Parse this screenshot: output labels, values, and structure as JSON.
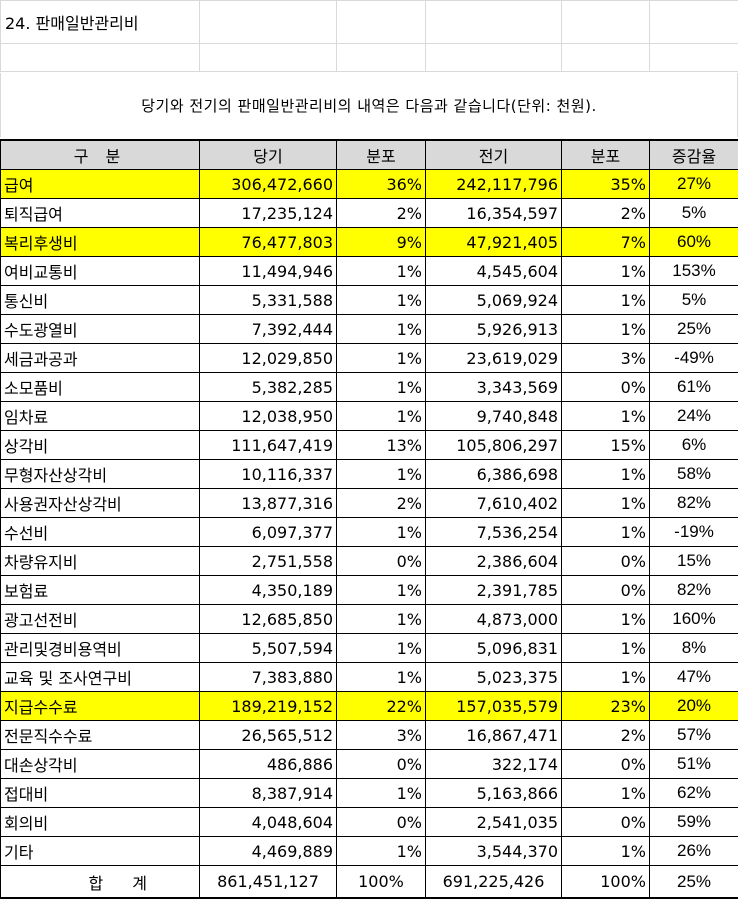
{
  "section_title": "24. 판매일반관리비",
  "caption": "당기와 전기의 판매일반관리비의 내역은 다음과 같습니다(단위: 천원).",
  "columns": [
    "구  분",
    "당기",
    "분포",
    "전기",
    "분포",
    "증감율"
  ],
  "highlight_color": "#ffff00",
  "header_bg": "#d9d9d9",
  "rows": [
    {
      "label": "급여",
      "current": "306,472,660",
      "current_share": "36%",
      "prior": "242,117,796",
      "prior_share": "35%",
      "change": "27%",
      "highlight": true
    },
    {
      "label": "퇴직급여",
      "current": "17,235,124",
      "current_share": "2%",
      "prior": "16,354,597",
      "prior_share": "2%",
      "change": "5%",
      "highlight": false
    },
    {
      "label": "복리후생비",
      "current": "76,477,803",
      "current_share": "9%",
      "prior": "47,921,405",
      "prior_share": "7%",
      "change": "60%",
      "highlight": true
    },
    {
      "label": "여비교통비",
      "current": "11,494,946",
      "current_share": "1%",
      "prior": "4,545,604",
      "prior_share": "1%",
      "change": "153%",
      "highlight": false
    },
    {
      "label": "통신비",
      "current": "5,331,588",
      "current_share": "1%",
      "prior": "5,069,924",
      "prior_share": "1%",
      "change": "5%",
      "highlight": false
    },
    {
      "label": "수도광열비",
      "current": "7,392,444",
      "current_share": "1%",
      "prior": "5,926,913",
      "prior_share": "1%",
      "change": "25%",
      "highlight": false
    },
    {
      "label": "세금과공과",
      "current": "12,029,850",
      "current_share": "1%",
      "prior": "23,619,029",
      "prior_share": "3%",
      "change": "-49%",
      "highlight": false
    },
    {
      "label": "소모품비",
      "current": "5,382,285",
      "current_share": "1%",
      "prior": "3,343,569",
      "prior_share": "0%",
      "change": "61%",
      "highlight": false
    },
    {
      "label": "임차료",
      "current": "12,038,950",
      "current_share": "1%",
      "prior": "9,740,848",
      "prior_share": "1%",
      "change": "24%",
      "highlight": false
    },
    {
      "label": "상각비",
      "current": "111,647,419",
      "current_share": "13%",
      "prior": "105,806,297",
      "prior_share": "15%",
      "change": "6%",
      "highlight": false
    },
    {
      "label": "무형자산상각비",
      "current": "10,116,337",
      "current_share": "1%",
      "prior": "6,386,698",
      "prior_share": "1%",
      "change": "58%",
      "highlight": false
    },
    {
      "label": "사용권자산상각비",
      "current": "13,877,316",
      "current_share": "2%",
      "prior": "7,610,402",
      "prior_share": "1%",
      "change": "82%",
      "highlight": false
    },
    {
      "label": "수선비",
      "current": "6,097,377",
      "current_share": "1%",
      "prior": "7,536,254",
      "prior_share": "1%",
      "change": "-19%",
      "highlight": false
    },
    {
      "label": "차량유지비",
      "current": "2,751,558",
      "current_share": "0%",
      "prior": "2,386,604",
      "prior_share": "0%",
      "change": "15%",
      "highlight": false
    },
    {
      "label": "보험료",
      "current": "4,350,189",
      "current_share": "1%",
      "prior": "2,391,785",
      "prior_share": "0%",
      "change": "82%",
      "highlight": false
    },
    {
      "label": "광고선전비",
      "current": "12,685,850",
      "current_share": "1%",
      "prior": "4,873,000",
      "prior_share": "1%",
      "change": "160%",
      "highlight": false
    },
    {
      "label": "관리및경비용역비",
      "current": "5,507,594",
      "current_share": "1%",
      "prior": "5,096,831",
      "prior_share": "1%",
      "change": "8%",
      "highlight": false
    },
    {
      "label": "교육 및 조사연구비",
      "current": "7,383,880",
      "current_share": "1%",
      "prior": "5,023,375",
      "prior_share": "1%",
      "change": "47%",
      "highlight": false
    },
    {
      "label": "지급수수료",
      "current": "189,219,152",
      "current_share": "22%",
      "prior": "157,035,579",
      "prior_share": "23%",
      "change": "20%",
      "highlight": true
    },
    {
      "label": "전문직수수료",
      "current": "26,565,512",
      "current_share": "3%",
      "prior": "16,867,471",
      "prior_share": "2%",
      "change": "57%",
      "highlight": false
    },
    {
      "label": "대손상각비",
      "current": "486,886",
      "current_share": "0%",
      "prior": "322,174",
      "prior_share": "0%",
      "change": "51%",
      "highlight": false
    },
    {
      "label": "접대비",
      "current": "8,387,914",
      "current_share": "1%",
      "prior": "5,163,866",
      "prior_share": "1%",
      "change": "62%",
      "highlight": false
    },
    {
      "label": "회의비",
      "current": "4,048,604",
      "current_share": "0%",
      "prior": "2,541,035",
      "prior_share": "0%",
      "change": "59%",
      "highlight": false
    },
    {
      "label": "기타",
      "current": "4,469,889",
      "current_share": "1%",
      "prior": "3,544,370",
      "prior_share": "1%",
      "change": "26%",
      "highlight": false
    }
  ],
  "total": {
    "label": "합 계",
    "current": "861,451,127",
    "current_share": "100%",
    "prior": "691,225,426",
    "prior_share": "100%",
    "change": "25%"
  }
}
